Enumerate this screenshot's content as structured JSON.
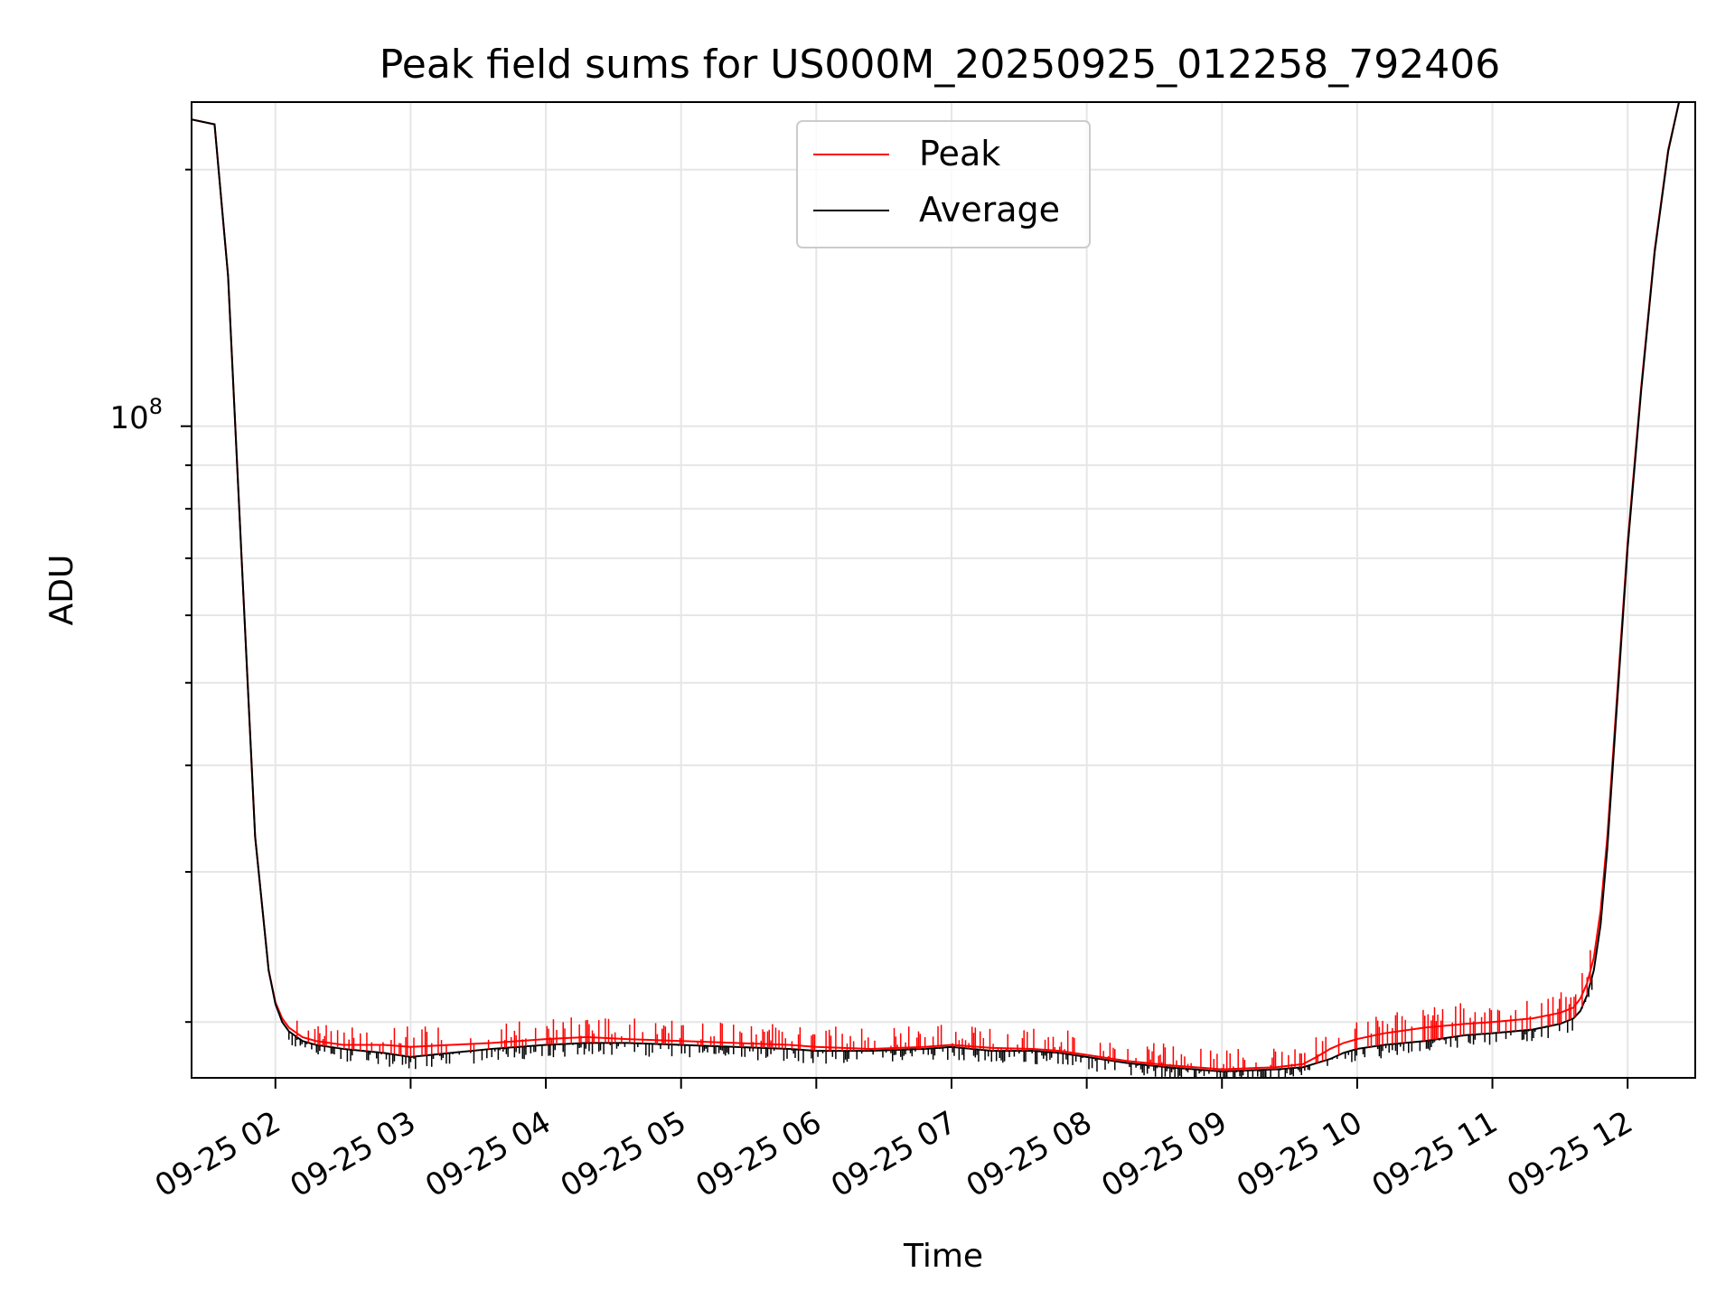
{
  "chart_data": {
    "type": "line",
    "title": "Peak field sums for US000M_20250925_012258_792406",
    "xlabel": "Time",
    "ylabel": "ADU",
    "yscale": "log",
    "grid": true,
    "legend_position": "upper-center",
    "xlim": [
      1.38,
      12.5
    ],
    "ylim": [
      17200000,
      240000000
    ],
    "x_units": "hours after 2025-09-25 00:00",
    "x_ticks": [
      2,
      3,
      4,
      5,
      6,
      7,
      8,
      9,
      10,
      11,
      12
    ],
    "x_tick_labels": [
      "09-25 02",
      "09-25 03",
      "09-25 04",
      "09-25 05",
      "09-25 06",
      "09-25 07",
      "09-25 08",
      "09-25 09",
      "09-25 10",
      "09-25 11",
      "09-25 12"
    ],
    "y_major_ticks": [
      100000000
    ],
    "y_major_tick_label": {
      "base": "10",
      "exponent": "8"
    },
    "y_minor_ticks": [
      20000000,
      30000000,
      40000000,
      50000000,
      60000000,
      70000000,
      80000000,
      90000000,
      200000000
    ],
    "y_minor_gridlines": [
      20000000,
      30000000,
      40000000,
      50000000,
      60000000,
      70000000,
      80000000,
      90000000,
      200000000
    ],
    "series": [
      {
        "name": "Average",
        "color": "#000000",
        "x": [
          1.38,
          1.55,
          1.65,
          1.75,
          1.85,
          1.95,
          2.0,
          2.05,
          2.1,
          2.2,
          2.3,
          2.5,
          2.8,
          3.0,
          3.3,
          3.6,
          4.0,
          4.3,
          4.6,
          5.0,
          5.4,
          5.8,
          6.0,
          6.4,
          6.8,
          7.0,
          7.3,
          7.6,
          7.8,
          8.0,
          8.3,
          8.6,
          8.9,
          9.0,
          9.2,
          9.4,
          9.6,
          9.7,
          9.8,
          9.9,
          10.0,
          10.2,
          10.5,
          10.8,
          11.0,
          11.3,
          11.5,
          11.6,
          11.65,
          11.7,
          11.75,
          11.8,
          11.85,
          11.9,
          11.95,
          12.0,
          12.1,
          12.2,
          12.3,
          12.38,
          12.45,
          12.5
        ],
        "y": [
          229000000,
          226000000,
          150000000,
          70000000,
          33000000,
          23000000,
          21000000,
          20000000,
          19500000,
          19000000,
          18800000,
          18600000,
          18400000,
          18200000,
          18400000,
          18600000,
          18800000,
          18900000,
          18900000,
          18800000,
          18700000,
          18600000,
          18500000,
          18500000,
          18600000,
          18700000,
          18500000,
          18500000,
          18400000,
          18200000,
          17900000,
          17700000,
          17550000,
          17500000,
          17550000,
          17600000,
          17700000,
          17900000,
          18100000,
          18400000,
          18600000,
          18800000,
          19000000,
          19300000,
          19400000,
          19600000,
          19900000,
          20200000,
          20600000,
          21500000,
          23000000,
          26000000,
          32000000,
          42000000,
          55000000,
          72000000,
          110000000,
          160000000,
          210000000,
          240000000,
          240000000,
          240000000
        ]
      },
      {
        "name": "Peak",
        "color": "#ff0000",
        "x": [
          1.38,
          1.55,
          1.65,
          1.75,
          1.85,
          1.95,
          2.0,
          2.05,
          2.1,
          2.2,
          2.3,
          2.5,
          2.8,
          3.0,
          3.3,
          3.6,
          4.0,
          4.3,
          4.6,
          5.0,
          5.4,
          5.8,
          6.0,
          6.4,
          6.8,
          7.0,
          7.3,
          7.6,
          7.8,
          8.0,
          8.3,
          8.6,
          8.9,
          9.0,
          9.2,
          9.4,
          9.6,
          9.7,
          9.8,
          9.9,
          10.0,
          10.2,
          10.5,
          10.8,
          11.0,
          11.3,
          11.5,
          11.6,
          11.65,
          11.7,
          11.75,
          11.8,
          11.85,
          11.9,
          11.95,
          12.0,
          12.1,
          12.2,
          12.3,
          12.38,
          12.45,
          12.5
        ],
        "y": [
          229000000,
          226000000,
          150000000,
          70000000,
          33000000,
          23000000,
          21100000,
          20200000,
          19700000,
          19200000,
          19000000,
          18800000,
          18800000,
          18700000,
          18800000,
          18900000,
          19100000,
          19200000,
          19100000,
          19000000,
          18900000,
          18800000,
          18700000,
          18600000,
          18700000,
          18800000,
          18650000,
          18600000,
          18500000,
          18300000,
          18000000,
          17800000,
          17650000,
          17600000,
          17650000,
          17700000,
          17850000,
          18200000,
          18600000,
          18900000,
          19100000,
          19400000,
          19700000,
          19900000,
          20000000,
          20200000,
          20500000,
          20800000,
          21300000,
          22200000,
          23800000,
          27000000,
          33000000,
          43000000,
          56000000,
          73000000,
          111000000,
          161000000,
          211000000,
          240000000,
          240000000,
          240000000
        ]
      }
    ]
  }
}
